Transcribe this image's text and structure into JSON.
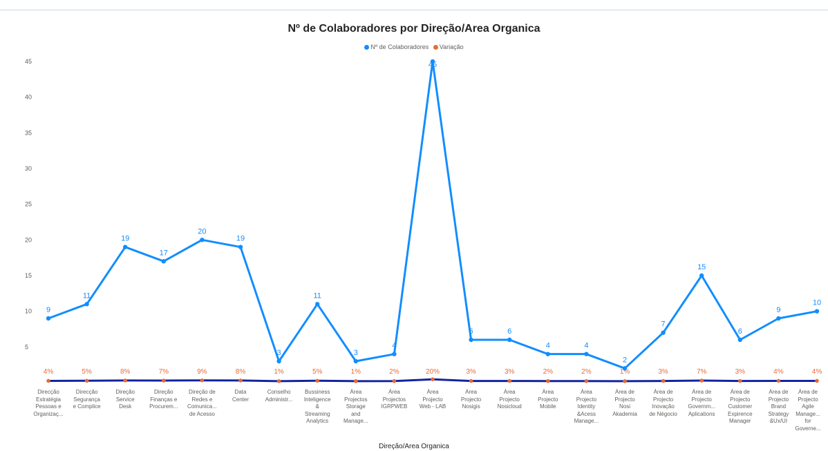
{
  "chart_data": {
    "type": "line",
    "title": "Nº de Colaboradores por Direção/Area Organica",
    "xlabel": "Direção/Area Organica",
    "ylabel": "",
    "ylim": [
      0,
      45
    ],
    "yticks": [
      5,
      10,
      15,
      20,
      25,
      30,
      35,
      40,
      45
    ],
    "grid": false,
    "legend_position": "top-center",
    "categories": [
      "Direcção Estratégia Pessoas e Organizaç...",
      "Direcção Segurança e Complice",
      "Direção Service Desk",
      "Direção Finanças e Procurem...",
      "Direção de Redes e Comunica... de Acesso",
      "Data Center",
      "Conselho Administ...",
      "Bussiness Inteligence & Streaming Analytics",
      "Área Projectos Storage and Manage...",
      "Área Projectos IGRPWEB",
      "Área Projecto Web - LAB",
      "Área Projecto Nosigis",
      "Área Projecto Nosicloud",
      "Área Projecto Mobile",
      "Área Projecto Identity &Acess Manage...",
      "Área de Projecto Nosi Akademia",
      "Área de Projecto Inovação de Négocio",
      "Área de Projecto Governm... Aplications",
      "Área de Projecto Customer Expirence Manager",
      "Área de Projecto Brand Strategy &Ux/UI",
      "Área de Projecto Agile Manage... for Governe..."
    ],
    "category_lines": [
      "Direcção\nEstratégia\nPessoas e\nOrganizaç...",
      "Direcção\nSegurança\ne Complice",
      "Direção\nService\nDesk",
      "Direção\nFinanças e\nProcurem...",
      "Direção de\nRedes e\nComunica...\nde Acesso",
      "Data\nCenter",
      "Conselho\nAdministr...",
      "Bussiness\nInteligence\n&\nStreaming\nAnalytics",
      "Área\nProjectos\nStorage\nand\nManage...",
      "Área\nProjectos\nIGRPWEB",
      "Área\nProjecto\nWeb - LAB",
      "Área\nProjecto\nNosigis",
      "Área\nProjecto\nNosicloud",
      "Área\nProjecto\nMobile",
      "Área\nProjecto\nIdentity\n&Acess\nManage...",
      "Área de\nProjecto\nNosi\nAkademia",
      "Área de\nProjecto\nInovação\nde Négocio",
      "Área de\nProjecto\nGovernm...\nAplications",
      "Área de\nProjecto\nCustomer\nExpirence\nManager",
      "Área de\nProjecto\nBrand\nStrategy\n&Ux/UI",
      "Área de\nProjecto\nAgile\nManage...\nfor\nGoverne..."
    ],
    "series": [
      {
        "name": "Nº de Colaboradores",
        "color": "#118dff",
        "values": [
          9,
          11,
          19,
          17,
          20,
          19,
          3,
          11,
          3,
          4,
          45,
          6,
          6,
          4,
          4,
          2,
          7,
          15,
          6,
          9,
          10
        ],
        "data_labels": [
          "9",
          "11",
          "19",
          "17",
          "20",
          "19",
          "3",
          "11",
          "3",
          "4",
          "45",
          "6",
          "6",
          "4",
          "4",
          "2",
          "7",
          "15",
          "6",
          "9",
          "10"
        ]
      },
      {
        "name": "Variação",
        "color": "#e66c37",
        "values": [
          0.04,
          0.05,
          0.08,
          0.07,
          0.09,
          0.08,
          0.01,
          0.05,
          0.01,
          0.02,
          0.2,
          0.03,
          0.03,
          0.02,
          0.02,
          0.01,
          0.03,
          0.07,
          0.03,
          0.04,
          0.04
        ],
        "data_labels": [
          "4%",
          "5%",
          "8%",
          "7%",
          "9%",
          "8%",
          "1%",
          "5%",
          "1%",
          "2%",
          "20%",
          "3%",
          "3%",
          "2%",
          "2%",
          "1%",
          "3%",
          "7%",
          "3%",
          "4%",
          "4%"
        ]
      }
    ],
    "colors": {
      "line_shadow": "#12239e",
      "axis_text": "#605e5c",
      "title_text": "#252423"
    }
  }
}
